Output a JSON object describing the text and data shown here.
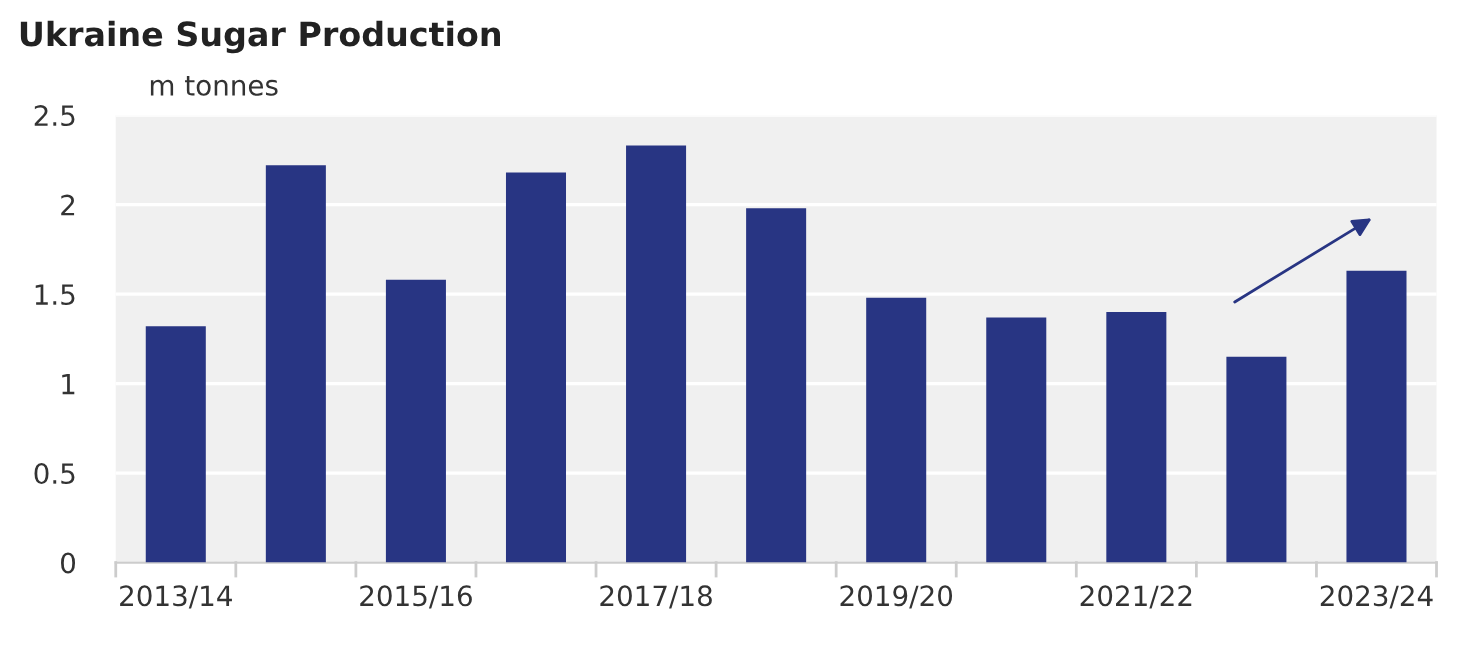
{
  "chart_data": {
    "type": "bar",
    "title": "Ukraine Sugar Production",
    "ylabel": "m tonnes",
    "categories": [
      "2013/14",
      null,
      "2015/16",
      null,
      "2017/18",
      null,
      "2019/20",
      null,
      "2021/22",
      null,
      "2023/24"
    ],
    "values": [
      1.32,
      2.22,
      1.58,
      2.18,
      2.33,
      1.98,
      1.48,
      1.37,
      1.4,
      1.15,
      1.63
    ],
    "color": "#283583",
    "ylim": [
      0,
      2.5
    ],
    "yticks": [
      0,
      0.5,
      1,
      1.5,
      2,
      2.5
    ],
    "grid": "y"
  }
}
